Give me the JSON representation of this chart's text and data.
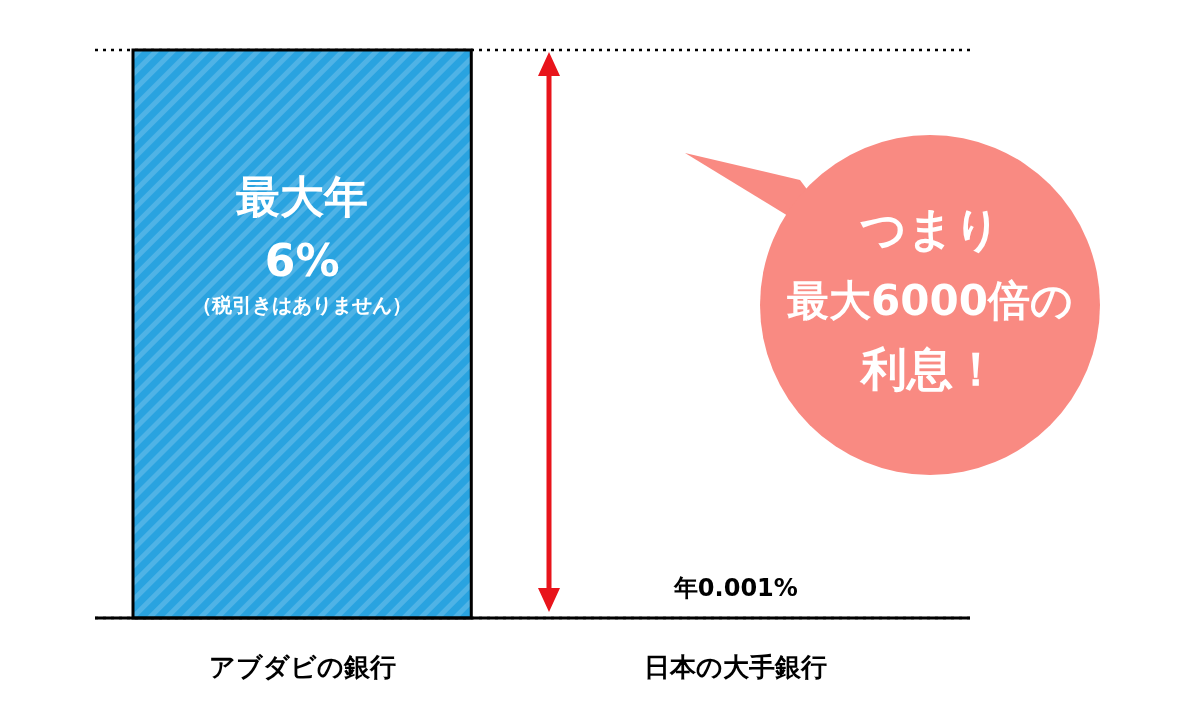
{
  "chart_data": {
    "type": "bar",
    "categories": [
      "アブダビの銀行",
      "日本の大手銀行"
    ],
    "values": [
      6,
      0.001
    ],
    "colors": [
      "#29a3e0",
      "#a6a6a6"
    ],
    "value_labels": [
      "6%",
      "年0.001%"
    ],
    "ylim": [
      0,
      6
    ],
    "ref_lines": [
      {
        "axis": "y",
        "value": 6,
        "color": "#000000",
        "line_style": "dotted"
      },
      {
        "axis": "y",
        "value": 0.001,
        "color": "#000000",
        "line_style": "dotted"
      }
    ],
    "annotations": [
      "最大年",
      "（税引きはありません）",
      "つまり",
      "最大6000倍の",
      "利息！"
    ]
  }
}
